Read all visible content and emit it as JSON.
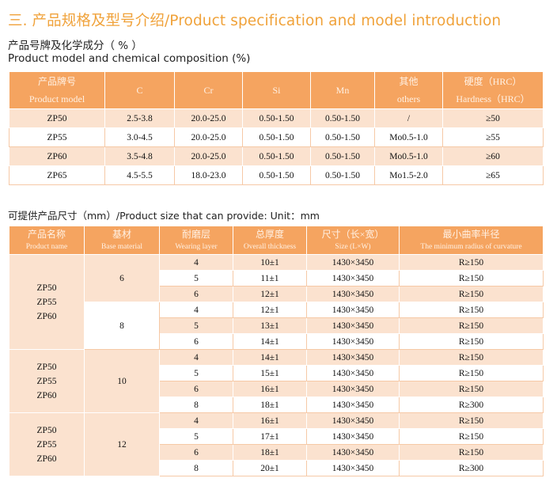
{
  "header": {
    "title": "三. 产品规格及型号介绍/Product specification and model introduction",
    "sub_cn": "产品号牌及化学成分（ % ）",
    "sub_en": "Product model and chemical composition (%)"
  },
  "chem_table": {
    "headers": [
      {
        "cn": "产品牌号",
        "en": "Product model"
      },
      {
        "cn": "C",
        "en": ""
      },
      {
        "cn": "Cr",
        "en": ""
      },
      {
        "cn": "Si",
        "en": ""
      },
      {
        "cn": "Mn",
        "en": ""
      },
      {
        "cn": "其他",
        "en": "others"
      },
      {
        "cn": "硬度（HRC）",
        "en": "Hardness（HRC）"
      }
    ],
    "rows": [
      [
        "ZP50",
        "2.5-3.8",
        "20.0-25.0",
        "0.50-1.50",
        "0.50-1.50",
        "/",
        "≥50"
      ],
      [
        "ZP55",
        "3.0-4.5",
        "20.0-25.0",
        "0.50-1.50",
        "0.50-1.50",
        "Mo0.5-1.0",
        "≥55"
      ],
      [
        "ZP60",
        "3.5-4.8",
        "20.0-25.0",
        "0.50-1.50",
        "0.50-1.50",
        "Mo0.5-1.0",
        "≥60"
      ],
      [
        "ZP65",
        "4.5-5.5",
        "18.0-23.0",
        "0.50-1.50",
        "0.50-1.50",
        "Mo1.5-2.0",
        "≥65"
      ]
    ]
  },
  "size_section": {
    "subtitle": "可提供产品尺寸（mm）/Product size that can provide:  Unit：mm",
    "headers": [
      {
        "cn": "产品名称",
        "en": "Product name"
      },
      {
        "cn": "基材",
        "en": "Base material"
      },
      {
        "cn": "耐磨层",
        "en": "Wearing layer"
      },
      {
        "cn": "总厚度",
        "en": "Overall thickness"
      },
      {
        "cn": "尺寸（长×宽）",
        "en": "Size (L×W)"
      },
      {
        "cn": "最小曲率半径",
        "en": "The minimum radius of curvature"
      }
    ],
    "groups": [
      {
        "products": [
          "ZP50",
          "ZP55",
          "ZP60"
        ],
        "bases": [
          {
            "base": "6",
            "rows": [
              {
                "layer": "4",
                "thickness": "10±1",
                "size": "1430×3450",
                "radius": "R≥150"
              },
              {
                "layer": "5",
                "thickness": "11±1",
                "size": "1430×3450",
                "radius": "R≥150"
              },
              {
                "layer": "6",
                "thickness": "12±1",
                "size": "1430×3450",
                "radius": "R≥150"
              }
            ]
          },
          {
            "base": "8",
            "rows": [
              {
                "layer": "4",
                "thickness": "12±1",
                "size": "1430×3450",
                "radius": "R≥150"
              },
              {
                "layer": "5",
                "thickness": "13±1",
                "size": "1430×3450",
                "radius": "R≥150"
              },
              {
                "layer": "6",
                "thickness": "14±1",
                "size": "1430×3450",
                "radius": "R≥150"
              }
            ]
          }
        ]
      },
      {
        "products": [
          "ZP50",
          "ZP55",
          "ZP60"
        ],
        "bases": [
          {
            "base": "10",
            "rows": [
              {
                "layer": "4",
                "thickness": "14±1",
                "size": "1430×3450",
                "radius": "R≥150"
              },
              {
                "layer": "5",
                "thickness": "15±1",
                "size": "1430×3450",
                "radius": "R≥150"
              },
              {
                "layer": "6",
                "thickness": "16±1",
                "size": "1430×3450",
                "radius": "R≥150"
              },
              {
                "layer": "8",
                "thickness": "18±1",
                "size": "1430×3450",
                "radius": "R≥300"
              }
            ]
          }
        ]
      },
      {
        "products": [
          "ZP50",
          "ZP55",
          "ZP60"
        ],
        "bases": [
          {
            "base": "12",
            "rows": [
              {
                "layer": "4",
                "thickness": "16±1",
                "size": "1430×3450",
                "radius": "R≥150"
              },
              {
                "layer": "5",
                "thickness": "17±1",
                "size": "1430×3450",
                "radius": "R≥150"
              },
              {
                "layer": "6",
                "thickness": "18±1",
                "size": "1430×3450",
                "radius": "R≥150"
              },
              {
                "layer": "8",
                "thickness": "20±1",
                "size": "1430×3450",
                "radius": "R≥300"
              }
            ]
          }
        ]
      }
    ]
  }
}
